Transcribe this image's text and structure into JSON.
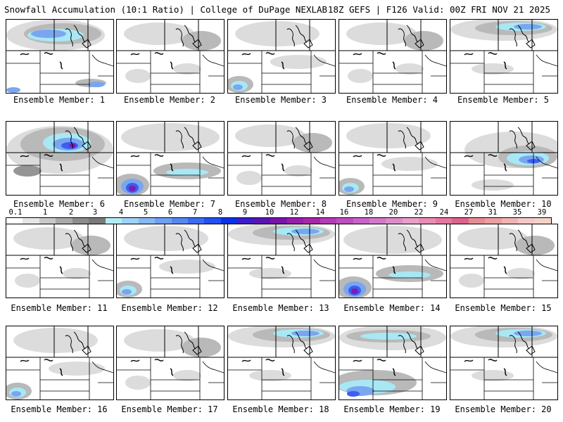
{
  "header": {
    "title": "Snowfall Accumulation (10:1 Ratio) | College of DuPage NEXLAB",
    "valid": "18Z GEFS | F126 Valid: 00Z FRI NOV 21 2025"
  },
  "legend": {
    "ticks": [
      "0.1",
      "1",
      "2",
      "3",
      "4",
      "5",
      "6",
      "7",
      "8",
      "9",
      "10",
      "12",
      "14",
      "16",
      "18",
      "20",
      "22",
      "24",
      "27",
      "31",
      "35",
      "39"
    ],
    "colors": [
      "#ffffff",
      "#e6e6e6",
      "#c8c8c8",
      "#a9a9a9",
      "#8c8c8c",
      "#7a7a7a",
      "#b3ecf5",
      "#a0d2f5",
      "#87b8f0",
      "#6e9ff0",
      "#5786f0",
      "#3d6cf0",
      "#2450f0",
      "#0c32e6",
      "#3c1ec8",
      "#5a14b4",
      "#7814aa",
      "#961eaa",
      "#a628a8",
      "#b43cb4",
      "#be50be",
      "#c864c8",
      "#d278c8",
      "#dc8cc8",
      "#e6a0c8",
      "#eb8cb4",
      "#e678a0",
      "#dc648c",
      "#e68c96",
      "#eba0a0",
      "#f0b4b4",
      "#f5c8c8",
      "#f5d2c8"
    ]
  },
  "members": [
    {
      "label": "Ensemble Member: 1",
      "snow": "heavy-north"
    },
    {
      "label": "Ensemble Member: 2",
      "snow": "light"
    },
    {
      "label": "Ensemble Member: 3",
      "snow": "southwest"
    },
    {
      "label": "Ensemble Member: 4",
      "snow": "light"
    },
    {
      "label": "Ensemble Member: 5",
      "snow": "north"
    },
    {
      "label": "Ensemble Member: 6",
      "snow": "heavy-center"
    },
    {
      "label": "Ensemble Member: 7",
      "snow": "southwest-heavy"
    },
    {
      "label": "Ensemble Member: 8",
      "snow": "light"
    },
    {
      "label": "Ensemble Member: 9",
      "snow": "southwest"
    },
    {
      "label": "Ensemble Member: 10",
      "snow": "east-band"
    },
    {
      "label": "Ensemble Member: 11",
      "snow": "light"
    },
    {
      "label": "Ensemble Member: 12",
      "snow": "southwest"
    },
    {
      "label": "Ensemble Member: 13",
      "snow": "north"
    },
    {
      "label": "Ensemble Member: 14",
      "snow": "southwest-heavy"
    },
    {
      "label": "Ensemble Member: 15",
      "snow": "light"
    },
    {
      "label": "Ensemble Member: 16",
      "snow": "southwest"
    },
    {
      "label": "Ensemble Member: 17",
      "snow": "light"
    },
    {
      "label": "Ensemble Member: 18",
      "snow": "north"
    },
    {
      "label": "Ensemble Member: 19",
      "snow": "band"
    },
    {
      "label": "Ensemble Member: 20",
      "snow": "north"
    }
  ]
}
